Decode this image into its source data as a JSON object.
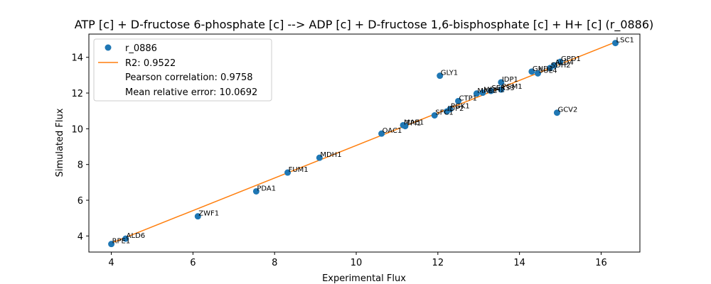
{
  "chart_data": {
    "type": "scatter",
    "title": "ATP [c] + D-fructose 6-phosphate [c] --> ADP [c] + D-fructose 1,6-bisphosphate [c] + H+ [c] (r_0886)",
    "xlabel": "Experimental Flux",
    "ylabel": "Simulated Flux",
    "xlim": [
      3.45,
      16.95
    ],
    "ylim": [
      3.1,
      15.3
    ],
    "xticks": [
      4,
      6,
      8,
      10,
      12,
      14,
      16
    ],
    "yticks": [
      4,
      6,
      8,
      10,
      12,
      14
    ],
    "grid": false,
    "legend_position": "upper-left",
    "colors": {
      "points": "#1f77b4",
      "fit_line": "#ff7f0e"
    },
    "series": [
      {
        "name": "r_0886",
        "marker": "circle",
        "points": [
          {
            "label": "RPE1",
            "x": 4.0,
            "y": 3.55
          },
          {
            "label": "ALD6",
            "x": 4.35,
            "y": 3.85
          },
          {
            "label": "ZWF1",
            "x": 6.12,
            "y": 5.1
          },
          {
            "label": "PDA1",
            "x": 7.55,
            "y": 6.5
          },
          {
            "label": "FUM1",
            "x": 8.32,
            "y": 7.55
          },
          {
            "label": "MDH1",
            "x": 9.1,
            "y": 8.38
          },
          {
            "label": "OAC1",
            "x": 10.62,
            "y": 9.73
          },
          {
            "label": "MAE1",
            "x": 11.15,
            "y": 10.2
          },
          {
            "label": "TPI1",
            "x": 11.2,
            "y": 10.15
          },
          {
            "label": "SFC1",
            "x": 11.92,
            "y": 10.75
          },
          {
            "label": "IDP2",
            "x": 12.22,
            "y": 10.97
          },
          {
            "label": "PGK1",
            "x": 12.3,
            "y": 11.1
          },
          {
            "label": "GLY1",
            "x": 12.05,
            "y": 12.97
          },
          {
            "label": "CTP1",
            "x": 12.5,
            "y": 11.55
          },
          {
            "label": "MAE2",
            "x": 12.95,
            "y": 11.97
          },
          {
            "label": "MDH2",
            "x": 13.1,
            "y": 12.02
          },
          {
            "label": "SER33",
            "x": 13.3,
            "y": 12.12
          },
          {
            "label": "PGM1",
            "x": 13.55,
            "y": 12.2
          },
          {
            "label": "IDP1",
            "x": 13.55,
            "y": 12.6
          },
          {
            "label": "GND1",
            "x": 14.3,
            "y": 13.2
          },
          {
            "label": "SOL4",
            "x": 14.45,
            "y": 13.1
          },
          {
            "label": "GPD1",
            "x": 15.0,
            "y": 13.75
          },
          {
            "label": "ALD4",
            "x": 14.85,
            "y": 13.55
          },
          {
            "label": "SDH2",
            "x": 14.75,
            "y": 13.4
          },
          {
            "label": "GCV2",
            "x": 14.92,
            "y": 10.9
          },
          {
            "label": "LSC1",
            "x": 16.35,
            "y": 14.8
          }
        ]
      }
    ],
    "fit_line": {
      "name": "R2: 0.9522",
      "x": [
        4.0,
        16.35
      ],
      "y": [
        3.6,
        14.85
      ]
    },
    "legend_extra": [
      "Pearson correlation: 0.9758",
      "Mean relative error: 10.0692"
    ]
  }
}
